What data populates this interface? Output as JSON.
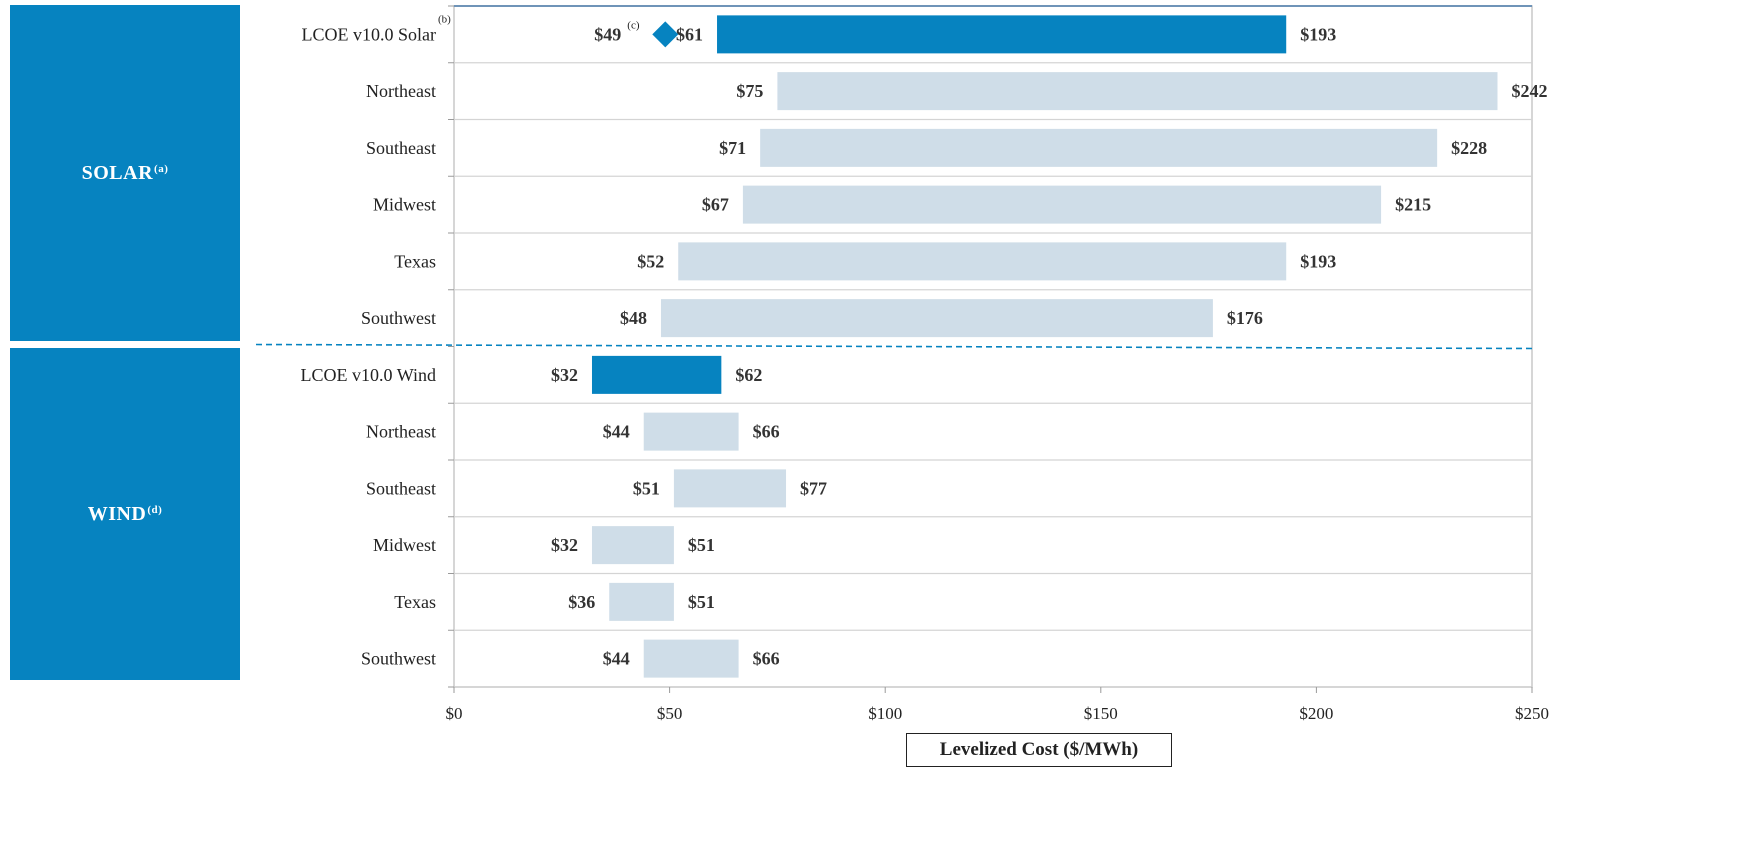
{
  "sections": [
    {
      "label": "SOLAR",
      "note": "(a)"
    },
    {
      "label": "WIND",
      "note": "(d)"
    }
  ],
  "colors": {
    "highlight": "#0683c0",
    "regional": "#cfdde8",
    "grid": "#d4d4d4",
    "divider": "#0683c0"
  },
  "chart_data": {
    "type": "bar",
    "orientation": "horizontal-floating-range",
    "xlabel": "Levelized Cost ($/MWh)",
    "xlim": [
      0,
      250
    ],
    "xticks": [
      0,
      50,
      100,
      150,
      200,
      250
    ],
    "xtick_labels": [
      "$0",
      "$50",
      "$100",
      "$150",
      "$200",
      "$250"
    ],
    "categories": [
      "LCOE v10.0 Solar",
      "Northeast",
      "Southeast",
      "Midwest",
      "Texas",
      "Southwest",
      "LCOE v10.0 Wind",
      "Northeast",
      "Southeast",
      "Midwest",
      "Texas",
      "Southwest"
    ],
    "category_notes": [
      "(b)",
      "",
      "",
      "",
      "",
      "",
      "",
      "",
      "",
      "",
      "",
      ""
    ],
    "series": [
      {
        "low": [
          61,
          75,
          71,
          67,
          52,
          48,
          32,
          44,
          51,
          32,
          36,
          44
        ],
        "high": [
          193,
          242,
          228,
          215,
          193,
          176,
          62,
          66,
          77,
          51,
          51,
          66
        ],
        "low_labels": [
          "$61",
          "$75",
          "$71",
          "$67",
          "$52",
          "$48",
          "$32",
          "$44",
          "$51",
          "$32",
          "$36",
          "$44"
        ],
        "high_labels": [
          "$193",
          "$242",
          "$228",
          "$215",
          "$193",
          "$176",
          "$62",
          "$66",
          "$77",
          "$51",
          "$51",
          "$66"
        ],
        "highlight": [
          true,
          false,
          false,
          false,
          false,
          false,
          true,
          false,
          false,
          false,
          false,
          false
        ]
      }
    ],
    "markers": [
      {
        "category_index": 0,
        "value": 49,
        "label": "$49",
        "note": "(c)",
        "shape": "diamond"
      }
    ],
    "grid": true
  }
}
